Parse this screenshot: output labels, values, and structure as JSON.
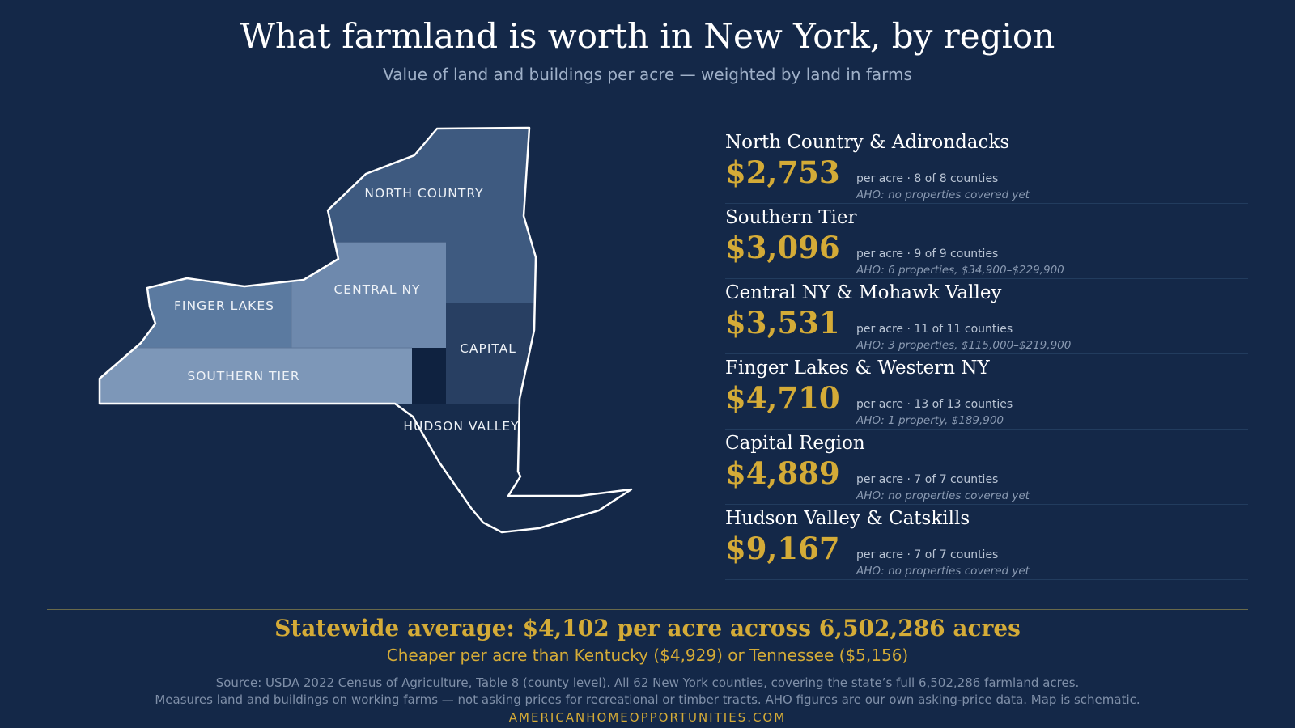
{
  "header": {
    "title": "What farmland is worth in New York, by region",
    "subtitle": "Value of land and buildings per acre — weighted by land in farms"
  },
  "map": {
    "labels": {
      "north_country": "NORTH COUNTRY",
      "central_ny": "CENTRAL NY",
      "finger_lakes": "FINGER LAKES",
      "capital": "CAPITAL",
      "southern_tier": "SOUTHERN TIER",
      "hudson_valley": "HUDSON VALLEY"
    },
    "colors": {
      "north_country": "#3e5a80",
      "central_ny": "#6e89ad",
      "finger_lakes": "#5b7aa0",
      "capital": "#283f62",
      "southern_tier": "#7d97b8",
      "hudson_valley": "#172c4c",
      "outline": "#ffffff"
    }
  },
  "regions": [
    {
      "name": "North Country & Adirondacks",
      "value": "$2,753",
      "meta": "per acre · 8 of 8 counties",
      "aho": "AHO: no properties covered yet"
    },
    {
      "name": "Southern Tier",
      "value": "$3,096",
      "meta": "per acre · 9 of 9 counties",
      "aho": "AHO: 6 properties, $34,900–$229,900"
    },
    {
      "name": "Central NY & Mohawk Valley",
      "value": "$3,531",
      "meta": "per acre · 11 of 11 counties",
      "aho": "AHO: 3 properties, $115,000–$219,900"
    },
    {
      "name": "Finger Lakes & Western NY",
      "value": "$4,710",
      "meta": "per acre · 13 of 13 counties",
      "aho": "AHO: 1 property, $189,900"
    },
    {
      "name": "Capital Region",
      "value": "$4,889",
      "meta": "per acre · 7 of 7 counties",
      "aho": "AHO: no properties covered yet"
    },
    {
      "name": "Hudson Valley & Catskills",
      "value": "$9,167",
      "meta": "per acre · 7 of 7 counties",
      "aho": "AHO: no properties covered yet"
    }
  ],
  "footer": {
    "statewide": "Statewide average: $4,102 per acre across 6,502,286 acres",
    "comparison": "Cheaper per acre than Kentucky ($4,929) or Tennessee ($5,156)",
    "source_line1": "Source: USDA 2022 Census of Agriculture, Table 8 (county level). All 62 New York counties, covering the state’s full 6,502,286 farmland acres.",
    "source_line2": "Measures land and buildings on working farms — not asking prices for recreational or timber tracts. AHO figures are our own asking-price data. Map is schematic.",
    "brand": "AMERICANHOMEOPPORTUNITIES.COM"
  },
  "theme": {
    "background": "#142848",
    "accent": "#d4ab37"
  }
}
